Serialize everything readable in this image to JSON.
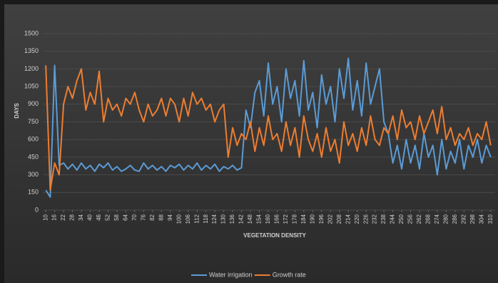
{
  "chart_data": {
    "type": "line",
    "x_label": "VEGETATION DENSITY",
    "y_label": "DAYS",
    "x": [
      10,
      13,
      16,
      19,
      22,
      25,
      28,
      31,
      34,
      37,
      40,
      43,
      46,
      49,
      52,
      55,
      58,
      61,
      64,
      67,
      70,
      73,
      76,
      79,
      82,
      85,
      88,
      91,
      94,
      97,
      100,
      103,
      106,
      109,
      112,
      115,
      118,
      121,
      124,
      127,
      130,
      133,
      136,
      139,
      142,
      145,
      148,
      151,
      154,
      157,
      160,
      163,
      166,
      169,
      172,
      175,
      178,
      181,
      184,
      187,
      190,
      193,
      196,
      199,
      202,
      205,
      208,
      211,
      214,
      217,
      220,
      223,
      226,
      229,
      232,
      235,
      238,
      241,
      244,
      247,
      250,
      253,
      256,
      259,
      262,
      265,
      268,
      271,
      274,
      277,
      280,
      283,
      286,
      289,
      292,
      295,
      298,
      301,
      304,
      307,
      310
    ],
    "series": [
      {
        "name": "Water irrigation",
        "color": "#5b9bd5",
        "values": [
          170,
          110,
          1230,
          380,
          400,
          350,
          390,
          340,
          400,
          350,
          380,
          330,
          390,
          360,
          400,
          340,
          370,
          330,
          350,
          380,
          340,
          330,
          400,
          350,
          380,
          340,
          370,
          330,
          380,
          360,
          390,
          340,
          380,
          350,
          400,
          340,
          380,
          350,
          390,
          330,
          370,
          350,
          380,
          340,
          360,
          850,
          700,
          1000,
          1100,
          800,
          1250,
          900,
          1050,
          750,
          1200,
          950,
          1100,
          800,
          1270,
          850,
          1000,
          700,
          1150,
          900,
          1050,
          750,
          1200,
          950,
          1290,
          850,
          1100,
          800,
          1250,
          900,
          1050,
          1200,
          750,
          650,
          400,
          550,
          350,
          600,
          400,
          550,
          350,
          650,
          450,
          550,
          300,
          600,
          350,
          500,
          400,
          600,
          350,
          550,
          450,
          600,
          400,
          550,
          450
        ]
      },
      {
        "name": "Growth rate",
        "color": "#ed7d31",
        "values": [
          1230,
          170,
          400,
          300,
          900,
          1050,
          950,
          1100,
          1200,
          850,
          1000,
          900,
          1180,
          750,
          950,
          850,
          900,
          800,
          950,
          900,
          1000,
          850,
          750,
          900,
          800,
          850,
          950,
          800,
          950,
          900,
          750,
          950,
          800,
          1000,
          900,
          950,
          850,
          900,
          750,
          850,
          900,
          450,
          700,
          550,
          650,
          600,
          750,
          500,
          700,
          550,
          800,
          600,
          650,
          500,
          750,
          550,
          700,
          450,
          800,
          600,
          500,
          650,
          450,
          700,
          500,
          600,
          400,
          750,
          550,
          650,
          500,
          700,
          550,
          800,
          600,
          550,
          700,
          650,
          800,
          600,
          850,
          700,
          750,
          600,
          800,
          650,
          750,
          850,
          650,
          880,
          600,
          700,
          550,
          650,
          600,
          700,
          550,
          650,
          600,
          750,
          550
        ]
      }
    ],
    "xlim": [
      8,
      313
    ],
    "xticks": [
      10,
      16,
      22,
      28,
      34,
      40,
      46,
      52,
      58,
      64,
      70,
      76,
      82,
      88,
      94,
      100,
      106,
      112,
      118,
      124,
      130,
      136,
      142,
      148,
      154,
      160,
      166,
      172,
      178,
      184,
      190,
      196,
      202,
      208,
      214,
      220,
      226,
      232,
      238,
      244,
      250,
      256,
      262,
      268,
      274,
      280,
      286,
      292,
      298,
      304,
      310
    ],
    "ylim": [
      0,
      1500
    ],
    "yticks": [
      0,
      150,
      300,
      450,
      600,
      750,
      900,
      1050,
      1200,
      1350,
      1500
    ],
    "grid": true,
    "legend": "bottom"
  }
}
